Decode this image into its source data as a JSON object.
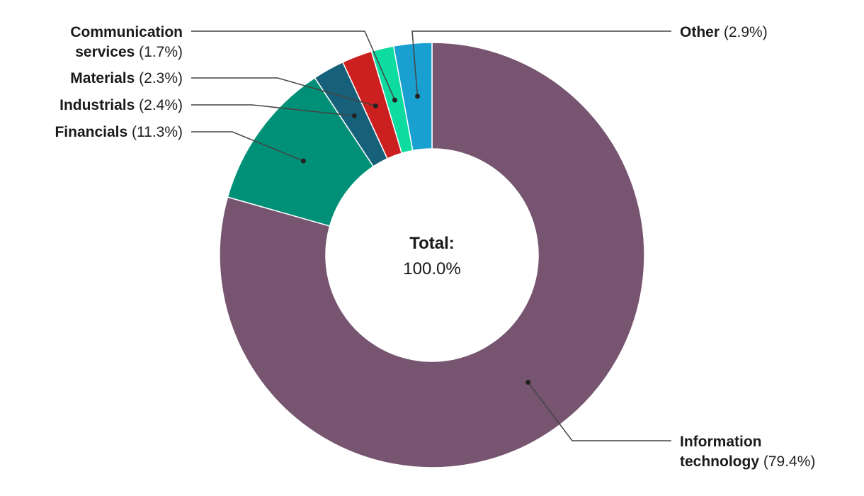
{
  "chart_data": {
    "type": "pie",
    "donut": true,
    "center": {
      "title": "Total:",
      "value": "100.0%"
    },
    "slices": [
      {
        "name": "Information technology",
        "label_lines": [
          {
            "bold": "Information",
            "pct": ""
          },
          {
            "bold": "technology",
            "pct": "(79.4%)"
          }
        ],
        "value": 79.4,
        "color": "#775570"
      },
      {
        "name": "Financials",
        "label_lines": [
          {
            "bold": "Financials",
            "pct": "(11.3%)"
          }
        ],
        "value": 11.3,
        "color": "#009077"
      },
      {
        "name": "Industrials",
        "label_lines": [
          {
            "bold": "Industrials",
            "pct": "(2.4%)"
          }
        ],
        "value": 2.4,
        "color": "#176079"
      },
      {
        "name": "Materials",
        "label_lines": [
          {
            "bold": "Materials",
            "pct": "(2.3%)"
          }
        ],
        "value": 2.3,
        "color": "#cc1f1f"
      },
      {
        "name": "Communication services",
        "label_lines": [
          {
            "bold": "Communication",
            "pct": ""
          },
          {
            "bold": "services",
            "pct": "(1.7%)"
          }
        ],
        "value": 1.7,
        "color": "#0ddba0"
      },
      {
        "name": "Other",
        "label_lines": [
          {
            "bold": "Other",
            "pct": "(2.9%)"
          }
        ],
        "value": 2.9,
        "color": "#1aa0d0"
      }
    ]
  }
}
